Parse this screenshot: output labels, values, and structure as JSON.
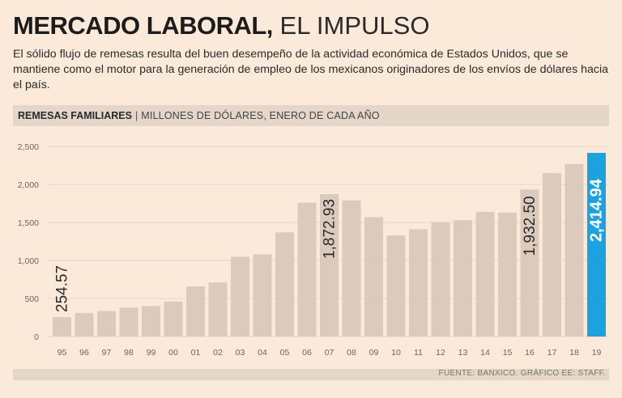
{
  "header": {
    "title_bold": "MERCADO LABORAL,",
    "title_light": "EL IMPULSO",
    "subtitle": "El sólido flujo de remesas resulta del buen desempeño de la actividad económica de Estados Unidos, que se mantiene como el motor para la generación de empleo de los mexicanos originadores de los envíos de dólares hacia el país."
  },
  "section": {
    "label": "REMESAS FAMILIARES",
    "separator": "|",
    "unit": "MILLONES DE DÓLARES, ENERO DE CADA AÑO"
  },
  "footer": {
    "source": "FUENTE: BANXICO. GRÁFICO EE: STAFF."
  },
  "colors": {
    "background": "#fbe9da",
    "bar": "#dccabd",
    "highlight": "#1da2e0",
    "gridline": "#e6d7c9",
    "axis_text": "#6e6660",
    "label_text": "#2a2a2a"
  },
  "chart_data": {
    "type": "bar",
    "title": "REMESAS FAMILIARES",
    "ylabel": "MILLONES DE DÓLARES, ENERO DE CADA AÑO",
    "xlabel": "",
    "ylim": [
      0,
      2500
    ],
    "yticks": [
      0,
      500,
      1000,
      1500,
      2000,
      2500
    ],
    "ytick_labels": [
      "0",
      "500",
      "1,000",
      "1,500",
      "2,000",
      "2,500"
    ],
    "categories": [
      "95",
      "96",
      "97",
      "98",
      "99",
      "00",
      "01",
      "02",
      "03",
      "04",
      "05",
      "06",
      "07",
      "08",
      "09",
      "10",
      "11",
      "12",
      "13",
      "14",
      "15",
      "16",
      "17",
      "18",
      "19"
    ],
    "values": [
      254.57,
      310,
      335,
      380,
      400,
      460,
      660,
      710,
      1050,
      1080,
      1370,
      1760,
      1872.93,
      1790,
      1570,
      1330,
      1410,
      1500,
      1530,
      1640,
      1630,
      1932.5,
      2150,
      2270,
      2414.94
    ],
    "annotations": [
      {
        "index": 0,
        "text": "254.57"
      },
      {
        "index": 12,
        "text": "1,872.93"
      },
      {
        "index": 21,
        "text": "1,932.50"
      },
      {
        "index": 24,
        "text": "2,414.94",
        "highlight": true
      }
    ],
    "highlight_index": 24,
    "grid": true
  }
}
